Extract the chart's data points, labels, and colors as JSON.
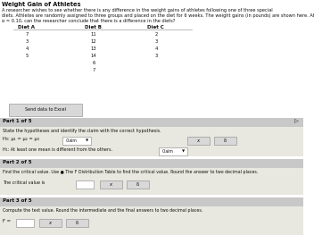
{
  "title": "Weight Gain of Athletes",
  "desc1": "A researcher wishes to see whether there is any difference in the weight gains of athletes following one of three special",
  "desc2": "diets. Athletes are randomly assigned to three groups and placed on the diet for 6 weeks. The weight gains (in pounds) are shown here. At",
  "desc3": "α = 0.10, can the researcher conclude that there is a difference in the diets?",
  "col_headers": [
    "Diet A",
    "Diet B",
    "Diet C"
  ],
  "diet_a": [
    "7",
    "3",
    "4",
    "5"
  ],
  "diet_b": [
    "11",
    "12",
    "13",
    "14",
    "6",
    "7"
  ],
  "diet_c": [
    "2",
    "3",
    "4",
    "3"
  ],
  "send_data_label": "Send data to Excel",
  "part1_label": "Part 1 of 5",
  "part1_text": "State the hypotheses and identify the claim with the correct hypothesis.",
  "h0_text": "H₀: μ₁ = μ₂ = μ₃",
  "h1_text": "H₁: At least one mean is different from the others.",
  "claim": "Claim",
  "part2_label": "Part 2 of 5",
  "part2_text": "Find the critical value. Use ● The F Distribution Table to find the critical value. Round the answer to two decimal places.",
  "cv_label": "The critical value is",
  "part3_label": "Part 3 of 5",
  "part3_text": "Compute the test value. Round the intermediate and the final answers to two decimal places.",
  "f_label": "F =",
  "white": "#ffffff",
  "off_white": "#f5f5f0",
  "section_hdr_bg": "#c8c8c8",
  "content_bg": "#e8e8e0",
  "input_bg": "#f0f0f0",
  "btn_bg": "#d8d8d8",
  "dark": "#111111",
  "gray_text": "#333333",
  "arrow_color": "#555555"
}
